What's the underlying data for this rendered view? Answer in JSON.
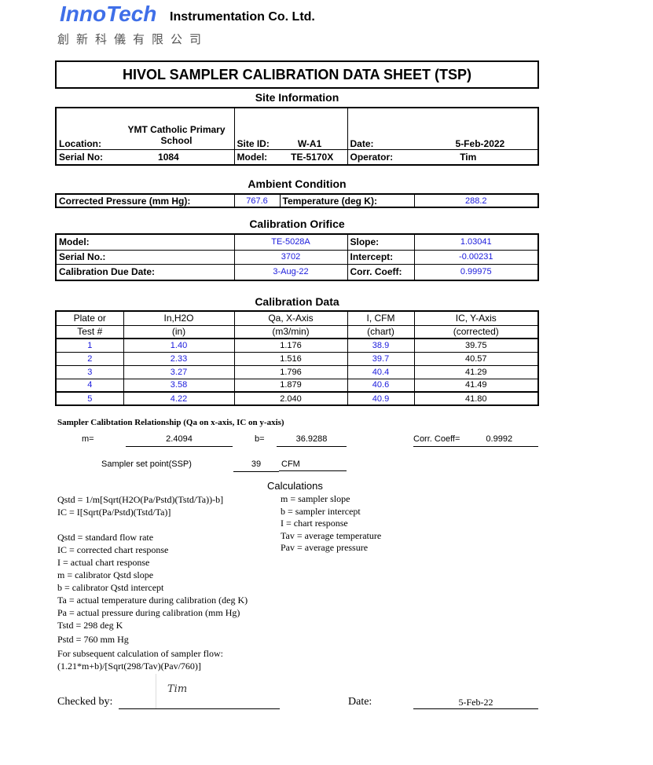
{
  "header": {
    "brand": "InnoTech",
    "company": "Instrumentation Co. Ltd.",
    "chinese": "創新科儀有限公司"
  },
  "title": "HIVOL SAMPLER CALIBRATION  DATA SHEET (TSP)",
  "site": {
    "heading": "Site Information",
    "location_label": "Location:",
    "location": "YMT Catholic Primary School",
    "site_id_label": "Site ID:",
    "site_id": "W-A1",
    "date_label": "Date:",
    "date": "5-Feb-2022",
    "serial_label": "Serial No:",
    "serial": "1084",
    "model_label": "Model:",
    "model": "TE-5170X",
    "operator_label": "Operator:",
    "operator": "Tim"
  },
  "ambient": {
    "heading": "Ambient Condition",
    "pressure_label": "Corrected Pressure (mm Hg):",
    "pressure": "767.6",
    "temp_label": "Temperature (deg K):",
    "temp": "288.2"
  },
  "orifice": {
    "heading": "Calibration Orifice",
    "model_label": "Model:",
    "model": "TE-5028A",
    "slope_label": "Slope:",
    "slope": "1.03041",
    "serial_label": "Serial No.:",
    "serial": "3702",
    "intercept_label": "Intercept:",
    "intercept": "-0.00231",
    "due_label": "Calibration Due Date:",
    "due": "3-Aug-22",
    "corr_label": "Corr. Coeff:",
    "corr": "0.99975"
  },
  "calibration": {
    "heading": "Calibration Data",
    "headers1": [
      "Plate or",
      "In,H2O",
      "Qa, X-Axis",
      "I, CFM",
      "IC, Y-Axis"
    ],
    "headers2": [
      "Test #",
      "(in)",
      "(m3/min)",
      "(chart)",
      "(corrected)"
    ],
    "rows": [
      [
        "1",
        "1.40",
        "1.176",
        "38.9",
        "39.75"
      ],
      [
        "2",
        "2.33",
        "1.516",
        "39.7",
        "40.57"
      ],
      [
        "3",
        "3.27",
        "1.796",
        "40.4",
        "41.29"
      ],
      [
        "4",
        "3.58",
        "1.879",
        "40.6",
        "41.49"
      ],
      [
        "5",
        "4.22",
        "2.040",
        "40.9",
        "41.80"
      ]
    ]
  },
  "relationship": {
    "heading": "Sampler Calibtation Relationship (Qa on x-axis, IC on y-axis)",
    "m_label": "m=",
    "m": "2.4094",
    "b_label": "b=",
    "b": "36.9288",
    "corr_label": "Corr. Coeff=",
    "corr": "0.9992",
    "ssp_label": "Sampler set point(SSP)",
    "ssp": "39",
    "ssp_unit": "CFM"
  },
  "calculations": {
    "heading": "Calculations",
    "left": [
      "Qstd = 1/m[Sqrt(H2O(Pa/Pstd)(Tstd/Ta))-b]",
      "IC = I[Sqrt(Pa/Pstd)(Tstd/Ta)]",
      "",
      "Qstd = standard flow rate",
      "IC = corrected chart response",
      "I = actual chart response",
      "m  = calibrator Qstd slope",
      "b  = calibrator Qstd intercept",
      "Ta = actual temperature during calibration (deg K)",
      "Pa = actual pressure during calibration (mm Hg)",
      "Tstd = 298 deg K",
      "Pstd = 760 mm Hg",
      "For subsequent calculation of sampler flow:",
      "(1.21*m+b)/[Sqrt(298/Tav)(Pav/760)]"
    ],
    "right": [
      "m   = sampler slope",
      "b   = sampler intercept",
      "I   = chart response",
      "Tav = average temperature",
      "Pav = average pressure"
    ]
  },
  "footer": {
    "checked_label": "Checked by:",
    "signature": "Tim",
    "date_label": "Date:",
    "date": "5-Feb-22"
  }
}
